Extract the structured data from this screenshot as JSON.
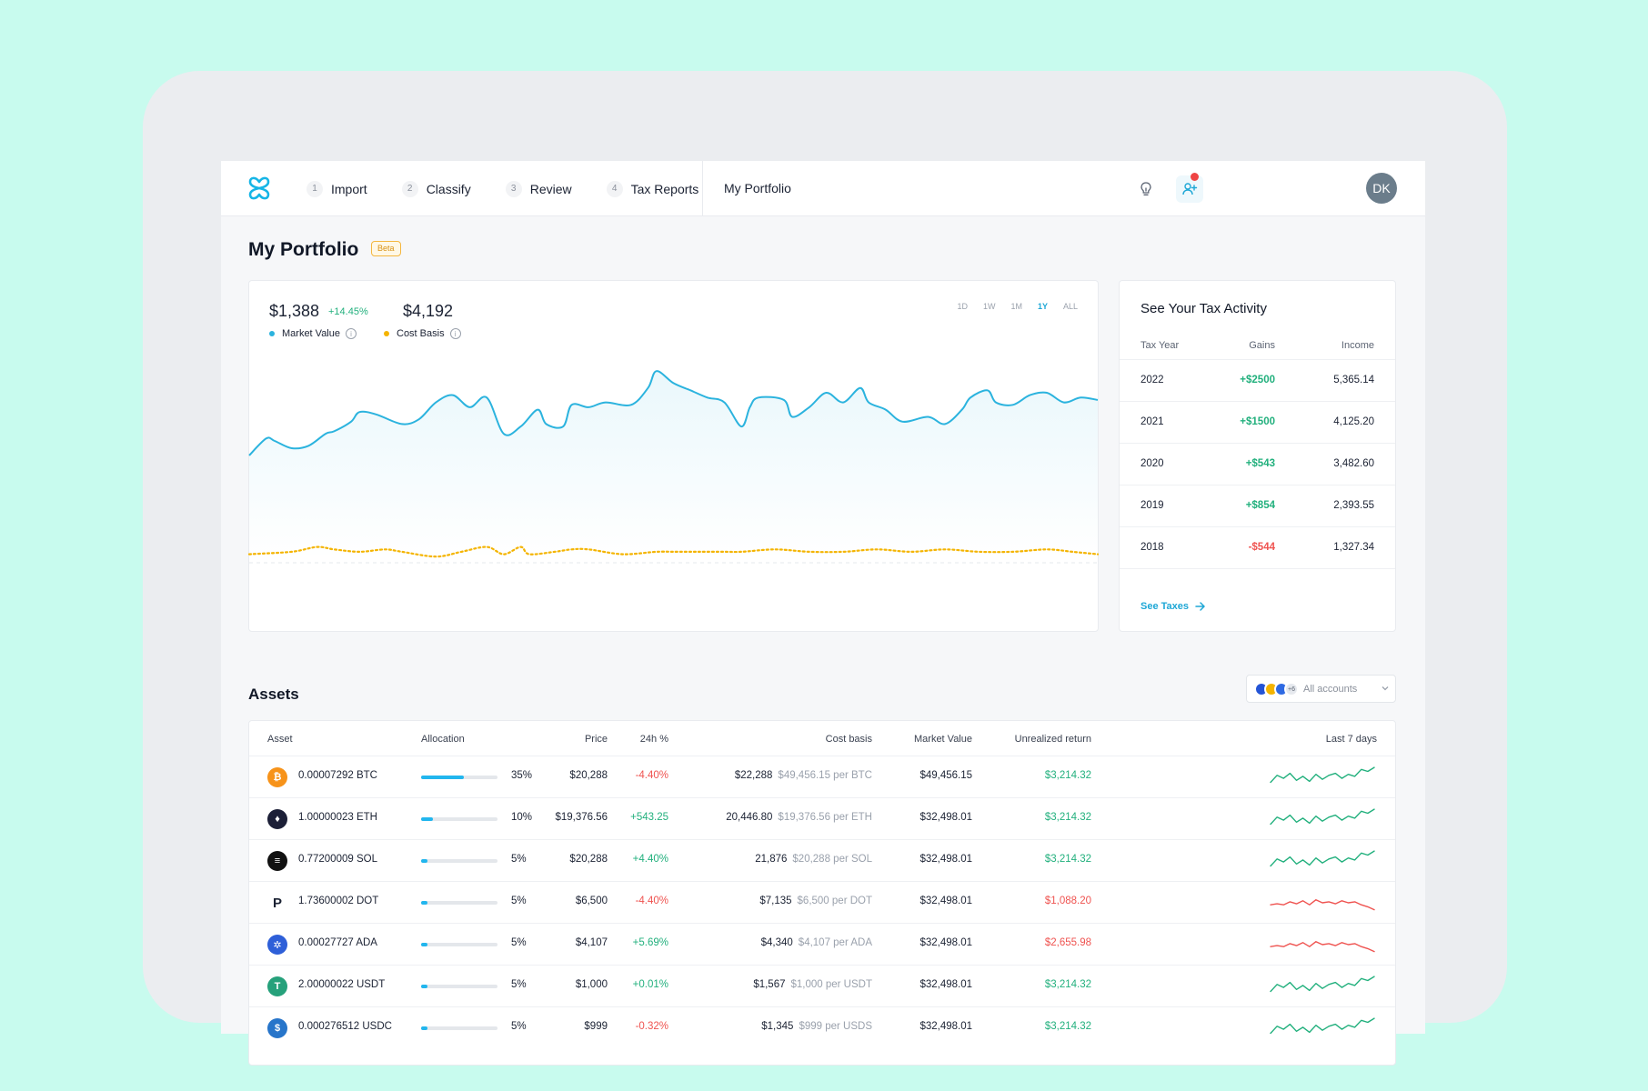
{
  "nav": {
    "steps": [
      {
        "num": "1",
        "label": "Import"
      },
      {
        "num": "2",
        "label": "Classify"
      },
      {
        "num": "3",
        "label": "Review"
      },
      {
        "num": "4",
        "label": "Tax Reports"
      }
    ],
    "portfolio_link": "My Portfolio",
    "avatar_initials": "DK"
  },
  "page": {
    "title": "My Portfolio",
    "badge": "Beta"
  },
  "chart_summary": {
    "market_value": "$1,388",
    "market_change": "+14.45%",
    "market_label": "Market Value",
    "cost_basis": "$4,192",
    "cost_label": "Cost Basis",
    "info_glyph": "i",
    "ranges": [
      "1D",
      "1W",
      "1M",
      "1Y",
      "ALL"
    ],
    "active_range": "1Y"
  },
  "chart_data": {
    "type": "line",
    "title": "",
    "xlabel": "",
    "ylabel": "",
    "x_range": [
      0,
      100
    ],
    "ylim": [
      0,
      100
    ],
    "grid": false,
    "legend": "top-left",
    "series": [
      {
        "name": "Market Value",
        "color": "#2bb3de",
        "x": [
          0,
          2,
          3,
          5,
          7,
          9,
          10,
          12,
          13,
          15,
          18,
          20,
          22,
          24,
          26,
          28,
          30,
          32,
          34,
          35,
          37,
          38,
          40,
          42,
          45,
          47,
          48,
          50,
          52,
          54,
          56,
          58,
          59,
          60,
          63,
          64,
          66,
          68,
          70,
          72,
          73,
          75,
          77,
          80,
          82,
          84,
          85,
          87,
          88,
          90,
          92,
          94,
          96,
          98,
          100
        ],
        "y": [
          54,
          61,
          60,
          57,
          58,
          63,
          64,
          68,
          72,
          71,
          67,
          69,
          76,
          79,
          74,
          78,
          63,
          66,
          73,
          67,
          66,
          75,
          74,
          76,
          75,
          82,
          89,
          84,
          81,
          78,
          76,
          66,
          74,
          78,
          77,
          70,
          74,
          80,
          76,
          82,
          76,
          73,
          68,
          70,
          67,
          73,
          78,
          81,
          76,
          75,
          79,
          80,
          76,
          78,
          77
        ]
      },
      {
        "name": "Cost Basis",
        "color": "#f4b400",
        "x": [
          0,
          5,
          8,
          10,
          13,
          16,
          18,
          22,
          25,
          28,
          30,
          32,
          33,
          36,
          38,
          40,
          44,
          48,
          50,
          53,
          56,
          58,
          62,
          66,
          70,
          74,
          78,
          82,
          86,
          90,
          94,
          97,
          100
        ],
        "y": [
          13,
          14,
          16,
          15,
          14,
          15,
          14,
          12,
          14,
          16,
          13,
          16,
          13,
          14,
          15,
          15,
          13,
          14,
          14,
          14,
          14,
          14,
          15,
          14,
          14,
          15,
          14,
          15,
          14,
          14,
          15,
          14,
          13
        ]
      }
    ]
  },
  "tax_activity": {
    "title": "See Your Tax Activity",
    "headers": [
      "Tax Year",
      "Gains",
      "Income"
    ],
    "rows": [
      {
        "year": "2022",
        "gains": "+$2500",
        "income": "5,365.14",
        "positive": true
      },
      {
        "year": "2021",
        "gains": "+$1500",
        "income": "4,125.20",
        "positive": true
      },
      {
        "year": "2020",
        "gains": "+$543",
        "income": "3,482.60",
        "positive": true
      },
      {
        "year": "2019",
        "gains": "+$854",
        "income": "2,393.55",
        "positive": true
      },
      {
        "year": "2018",
        "gains": "-$544",
        "income": "1,327.34",
        "positive": false
      }
    ],
    "see_taxes": "See Taxes"
  },
  "assets": {
    "title": "Assets",
    "filter_label": "All accounts",
    "filter_more": "+6",
    "headers": [
      "Asset",
      "Allocation",
      "Price",
      "24h %",
      "Cost basis",
      "Market Value",
      "Unrealized return",
      "Last 7 days"
    ],
    "rows": [
      {
        "icon": "bitcoin-icon",
        "glyph": "₿",
        "color": "#f7931a",
        "asset": "0.00007292 BTC",
        "alloc_pct": 35,
        "alloc": "35%",
        "price": "$20,288",
        "change": "-4.40%",
        "change_pos": false,
        "cost": "$22,288",
        "cost_per": "$49,456.15 per BTC",
        "market": "$49,456.15",
        "unrealized": "$3,214.32",
        "unrealized_pos": true,
        "spark": [
          6,
          13,
          10,
          15,
          8,
          12,
          7,
          14,
          9,
          13,
          15,
          10,
          14,
          12,
          19,
          17,
          21
        ]
      },
      {
        "icon": "ethereum-icon",
        "glyph": "♦",
        "color": "#1c1f37",
        "asset": "1.00000023 ETH",
        "alloc_pct": 10,
        "alloc": "10%",
        "price": "$19,376.56",
        "change": "+543.25",
        "change_pos": true,
        "cost": "20,446.80",
        "cost_per": "$19,376.56 per ETH",
        "market": "$32,498.01",
        "unrealized": "$3,214.32",
        "unrealized_pos": true,
        "spark": [
          6,
          13,
          10,
          15,
          8,
          12,
          7,
          14,
          9,
          13,
          15,
          10,
          14,
          12,
          19,
          17,
          21
        ]
      },
      {
        "icon": "solana-icon",
        "glyph": "≡",
        "color": "#111111",
        "asset": "0.77200009 SOL",
        "alloc_pct": 5,
        "alloc": "5%",
        "price": "$20,288",
        "change": "+4.40%",
        "change_pos": true,
        "cost": "21,876",
        "cost_per": "$20,288 per SOL",
        "market": "$32,498.01",
        "unrealized": "$3,214.32",
        "unrealized_pos": true,
        "spark": [
          6,
          13,
          10,
          15,
          8,
          12,
          7,
          14,
          9,
          13,
          15,
          10,
          14,
          12,
          19,
          17,
          21
        ]
      },
      {
        "icon": "polkadot-icon",
        "glyph": "P",
        "color": "#ffffff",
        "asset": "1.73600002 DOT",
        "alloc_pct": 5,
        "alloc": "5%",
        "price": "$6,500",
        "change": "-4.40%",
        "change_pos": false,
        "cost": "$7,135",
        "cost_per": "$6,500 per DOT",
        "market": "$32,498.01",
        "unrealized": "$1,088.20",
        "unrealized_pos": false,
        "spark": [
          9,
          10,
          9,
          12,
          10,
          13,
          9,
          14,
          11,
          12,
          10,
          13,
          11,
          12,
          9,
          7,
          4
        ]
      },
      {
        "icon": "cardano-icon",
        "glyph": "✲",
        "color": "#2e5fd8",
        "asset": "0.00027727 ADA",
        "alloc_pct": 5,
        "alloc": "5%",
        "price": "$4,107",
        "change": "+5.69%",
        "change_pos": true,
        "cost": "$4,340",
        "cost_per": "$4,107 per ADA",
        "market": "$32,498.01",
        "unrealized": "$2,655.98",
        "unrealized_pos": false,
        "spark": [
          9,
          10,
          9,
          12,
          10,
          13,
          9,
          14,
          11,
          12,
          10,
          13,
          11,
          12,
          9,
          7,
          4
        ]
      },
      {
        "icon": "tether-icon",
        "glyph": "T",
        "color": "#26a17b",
        "asset": "2.00000022 USDT",
        "alloc_pct": 5,
        "alloc": "5%",
        "price": "$1,000",
        "change": "+0.01%",
        "change_pos": true,
        "cost": "$1,567",
        "cost_per": "$1,000 per USDT",
        "market": "$32,498.01",
        "unrealized": "$3,214.32",
        "unrealized_pos": true,
        "spark": [
          6,
          13,
          10,
          15,
          8,
          12,
          7,
          14,
          9,
          13,
          15,
          10,
          14,
          12,
          19,
          17,
          21
        ]
      },
      {
        "icon": "usdc-icon",
        "glyph": "$",
        "color": "#2775ca",
        "asset": "0.000276512 USDC",
        "alloc_pct": 5,
        "alloc": "5%",
        "price": "$999",
        "change": "-0.32%",
        "change_pos": false,
        "cost": "$1,345",
        "cost_per": "$999 per USDS",
        "market": "$32,498.01",
        "unrealized": "$3,214.32",
        "unrealized_pos": true,
        "spark": [
          6,
          13,
          10,
          15,
          8,
          12,
          7,
          14,
          9,
          13,
          15,
          10,
          14,
          12,
          19,
          17,
          21
        ]
      }
    ]
  },
  "colors": {
    "accent": "#1ea7d6",
    "positive": "#22b07d",
    "negative": "#ef5350",
    "cost_basis": "#f4b400"
  }
}
